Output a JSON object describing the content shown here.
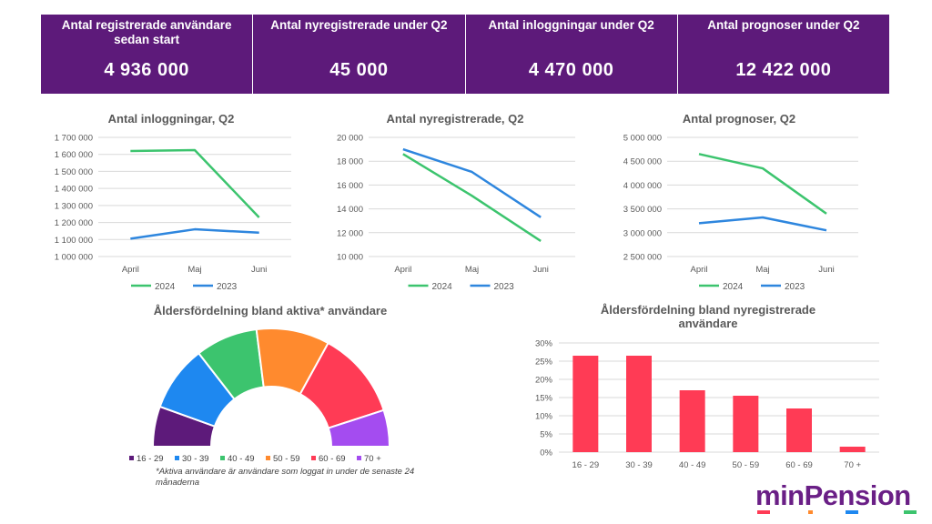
{
  "kpis": [
    {
      "label": "Antal registrerade användare sedan start",
      "value": "4 936 000"
    },
    {
      "label": "Antal nyregistrerade under Q2",
      "value": "45 000"
    },
    {
      "label": "Antal inloggningar under Q2",
      "value": "4 470 000"
    },
    {
      "label": "Antal prognoser under Q2",
      "value": "12 422 000"
    }
  ],
  "colors": {
    "header_bg": "#5d1a7a",
    "series_2024": "#3cc46e",
    "series_2023": "#2e86de",
    "bar": "#ff3b55",
    "logo": "#6a1f86"
  },
  "chart_data": [
    {
      "type": "line",
      "title": "Antal inloggningar,  Q2",
      "categories": [
        "April",
        "Maj",
        "Juni"
      ],
      "series": [
        {
          "name": "2024",
          "values": [
            1620000,
            1625000,
            1230000
          ]
        },
        {
          "name": "2023",
          "values": [
            1105000,
            1160000,
            1140000
          ]
        }
      ],
      "ylim": [
        1000000,
        1700000
      ],
      "yticks": [
        "1 000 000",
        "1 100 000",
        "1 200 000",
        "1 300 000",
        "1 400 000",
        "1 500 000",
        "1 600 000",
        "1 700 000"
      ],
      "grid": true,
      "legend": "bottom"
    },
    {
      "type": "line",
      "title": "Antal nyregistrerade, Q2",
      "categories": [
        "April",
        "Maj",
        "Juni"
      ],
      "series": [
        {
          "name": "2024",
          "values": [
            18600,
            15100,
            11300
          ]
        },
        {
          "name": "2023",
          "values": [
            19000,
            17100,
            13300
          ]
        }
      ],
      "ylim": [
        10000,
        20000
      ],
      "yticks": [
        "10 000",
        "12 000",
        "14 000",
        "16 000",
        "18 000",
        "20 000"
      ],
      "grid": true,
      "legend": "bottom"
    },
    {
      "type": "line",
      "title": "Antal prognoser, Q2",
      "categories": [
        "April",
        "Maj",
        "Juni"
      ],
      "series": [
        {
          "name": "2024",
          "values": [
            4650000,
            4350000,
            3400000
          ]
        },
        {
          "name": "2023",
          "values": [
            3200000,
            3320000,
            3050000
          ]
        }
      ],
      "ylim": [
        2500000,
        5000000
      ],
      "yticks": [
        "2 500 000",
        "3 000 000",
        "3 500 000",
        "4 000 000",
        "4 500 000",
        "5 000 000"
      ],
      "grid": true,
      "legend": "bottom"
    },
    {
      "type": "pie",
      "title": "Åldersfördelning  bland aktiva*  användare",
      "labels": [
        "16 - 29",
        "30 - 39",
        "40 - 49",
        "50 - 59",
        "60 - 69",
        "70 +"
      ],
      "values": [
        11,
        18,
        17,
        20,
        24,
        10
      ],
      "colors": [
        "#5d1a7a",
        "#1e88f0",
        "#3cc46e",
        "#ff8a2e",
        "#ff3b55",
        "#a44cf0"
      ],
      "shape": "half-donut",
      "legend": "bottom"
    },
    {
      "type": "bar",
      "title": "Åldersfördelning  bland nyregistrerade användare",
      "categories": [
        "16 - 29",
        "30 - 39",
        "40 - 49",
        "50 - 59",
        "60 - 69",
        "70 +"
      ],
      "values": [
        26.5,
        26.5,
        17,
        15.5,
        12,
        1.5
      ],
      "ylim": [
        0,
        30
      ],
      "yticks": [
        "0%",
        "5%",
        "10%",
        "15%",
        "20%",
        "25%",
        "30%"
      ],
      "grid": true
    }
  ],
  "footnote": "*Aktiva användare är användare som loggat  in under de senaste 24 månaderna",
  "logo": {
    "text": "minPension"
  }
}
